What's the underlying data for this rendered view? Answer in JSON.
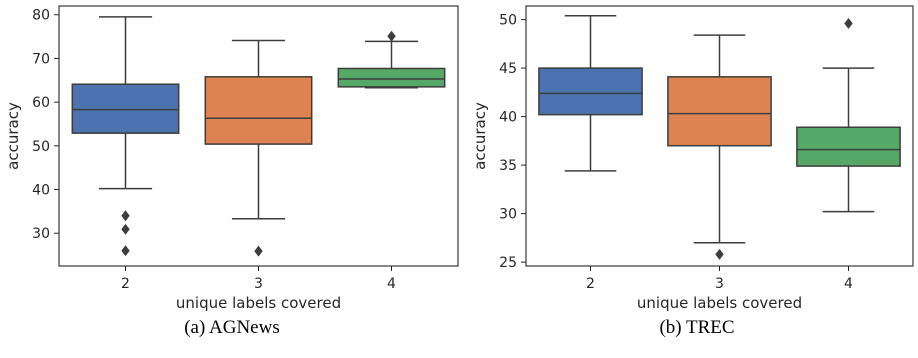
{
  "chart_data": [
    {
      "type": "boxplot",
      "caption": "(a) AGNews",
      "xlabel": "unique labels covered",
      "ylabel": "accuracy",
      "categories": [
        "2",
        "3",
        "4"
      ],
      "ylim": [
        22.5,
        82
      ],
      "yticks": [
        30,
        40,
        50,
        60,
        70,
        80
      ],
      "colors": [
        "#4c72b0",
        "#dd8452",
        "#55a868"
      ],
      "boxes": [
        {
          "category": "2",
          "whisker_low": 40.2,
          "q1": 52.9,
          "median": 58.3,
          "q3": 64.1,
          "whisker_high": 79.5,
          "outliers": [
            34.0,
            30.9,
            26.0
          ]
        },
        {
          "category": "3",
          "whisker_low": 33.3,
          "q1": 50.4,
          "median": 56.3,
          "q3": 65.8,
          "whisker_high": 74.1,
          "outliers": [
            25.9
          ]
        },
        {
          "category": "4",
          "whisker_low": 63.3,
          "q1": 63.5,
          "median": 65.3,
          "q3": 67.7,
          "whisker_high": 73.9,
          "outliers": [
            75.1
          ]
        }
      ]
    },
    {
      "type": "boxplot",
      "caption": "(b) TREC",
      "xlabel": "unique labels covered",
      "ylabel": "accuracy",
      "categories": [
        "2",
        "3",
        "4"
      ],
      "ylim": [
        24.6,
        51.4
      ],
      "yticks": [
        25,
        30,
        35,
        40,
        45,
        50
      ],
      "colors": [
        "#4c72b0",
        "#dd8452",
        "#55a868"
      ],
      "boxes": [
        {
          "category": "2",
          "whisker_low": 34.4,
          "q1": 40.2,
          "median": 42.4,
          "q3": 45.0,
          "whisker_high": 50.4,
          "outliers": []
        },
        {
          "category": "3",
          "whisker_low": 27.0,
          "q1": 37.0,
          "median": 40.3,
          "q3": 44.1,
          "whisker_high": 48.4,
          "outliers": [
            25.8
          ]
        },
        {
          "category": "4",
          "whisker_low": 30.2,
          "q1": 34.9,
          "median": 36.6,
          "q3": 38.9,
          "whisker_high": 45.0,
          "outliers": [
            49.6
          ]
        }
      ]
    }
  ]
}
